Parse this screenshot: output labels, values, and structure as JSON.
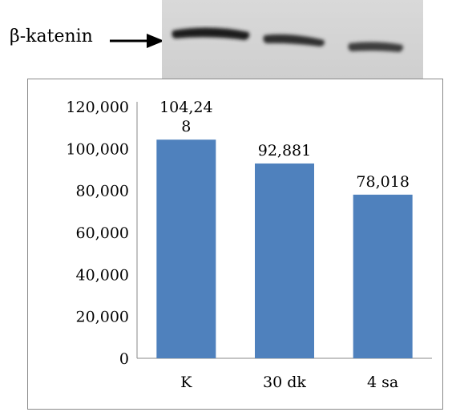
{
  "blot": {
    "label": "β-katenin",
    "arrow_icon": "arrow-right-icon"
  },
  "chart_data": {
    "type": "bar",
    "categories": [
      "K",
      "30 dk",
      "4 sa"
    ],
    "values": [
      104.248,
      92.881,
      78.018
    ],
    "data_labels": [
      [
        "104,24",
        "8"
      ],
      [
        "92,881"
      ],
      [
        "78,018"
      ]
    ],
    "y_tick_labels": [
      "0",
      "20,000",
      "40,000",
      "60,000",
      "80,000",
      "100,000",
      "120,000"
    ],
    "y_ticks": [
      0,
      20,
      40,
      60,
      80,
      100,
      120
    ],
    "ylim": [
      0,
      120
    ],
    "bar_color": "#4f81bd",
    "grid": false,
    "legend": "none",
    "title": "",
    "xlabel": "",
    "ylabel": ""
  }
}
